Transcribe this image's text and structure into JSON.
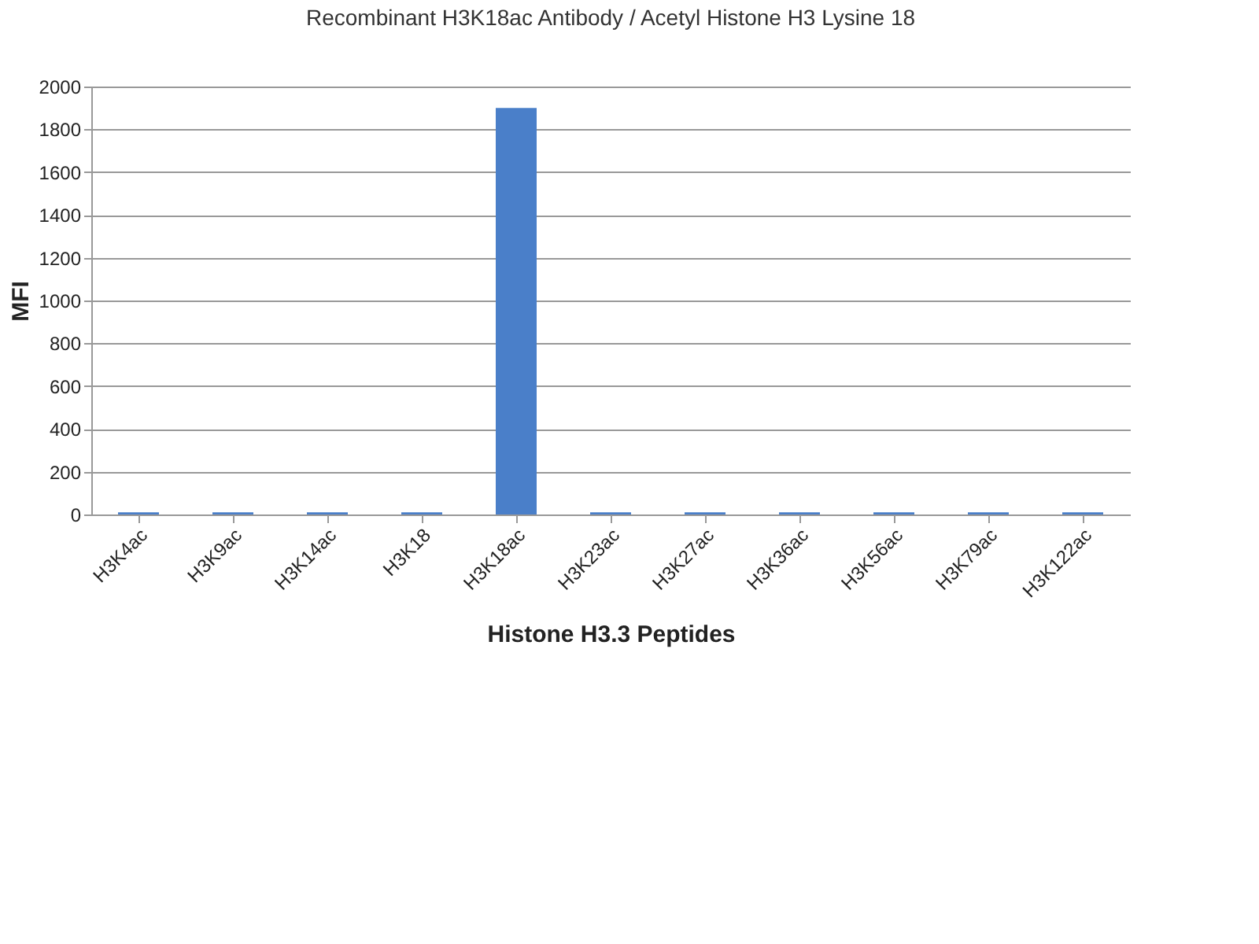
{
  "chart_data": {
    "type": "bar",
    "title": "Recombinant H3K18ac Antibody / Acetyl Histone H3 Lysine 18",
    "xlabel": "Histone H3.3 Peptides",
    "ylabel": "MFI",
    "categories": [
      "H3K4ac",
      "H3K9ac",
      "H3K14ac",
      "H3K18",
      "H3K18ac",
      "H3K23ac",
      "H3K27ac",
      "H3K36ac",
      "H3K56ac",
      "H3K79ac",
      "H3K122ac"
    ],
    "values": [
      10,
      10,
      10,
      10,
      1900,
      10,
      10,
      10,
      10,
      10,
      10
    ],
    "color": "#4a7fc9",
    "ylim": [
      0,
      2000
    ],
    "yticks": [
      0,
      200,
      400,
      600,
      800,
      1000,
      1200,
      1400,
      1600,
      1800,
      2000
    ],
    "grid": "y"
  }
}
